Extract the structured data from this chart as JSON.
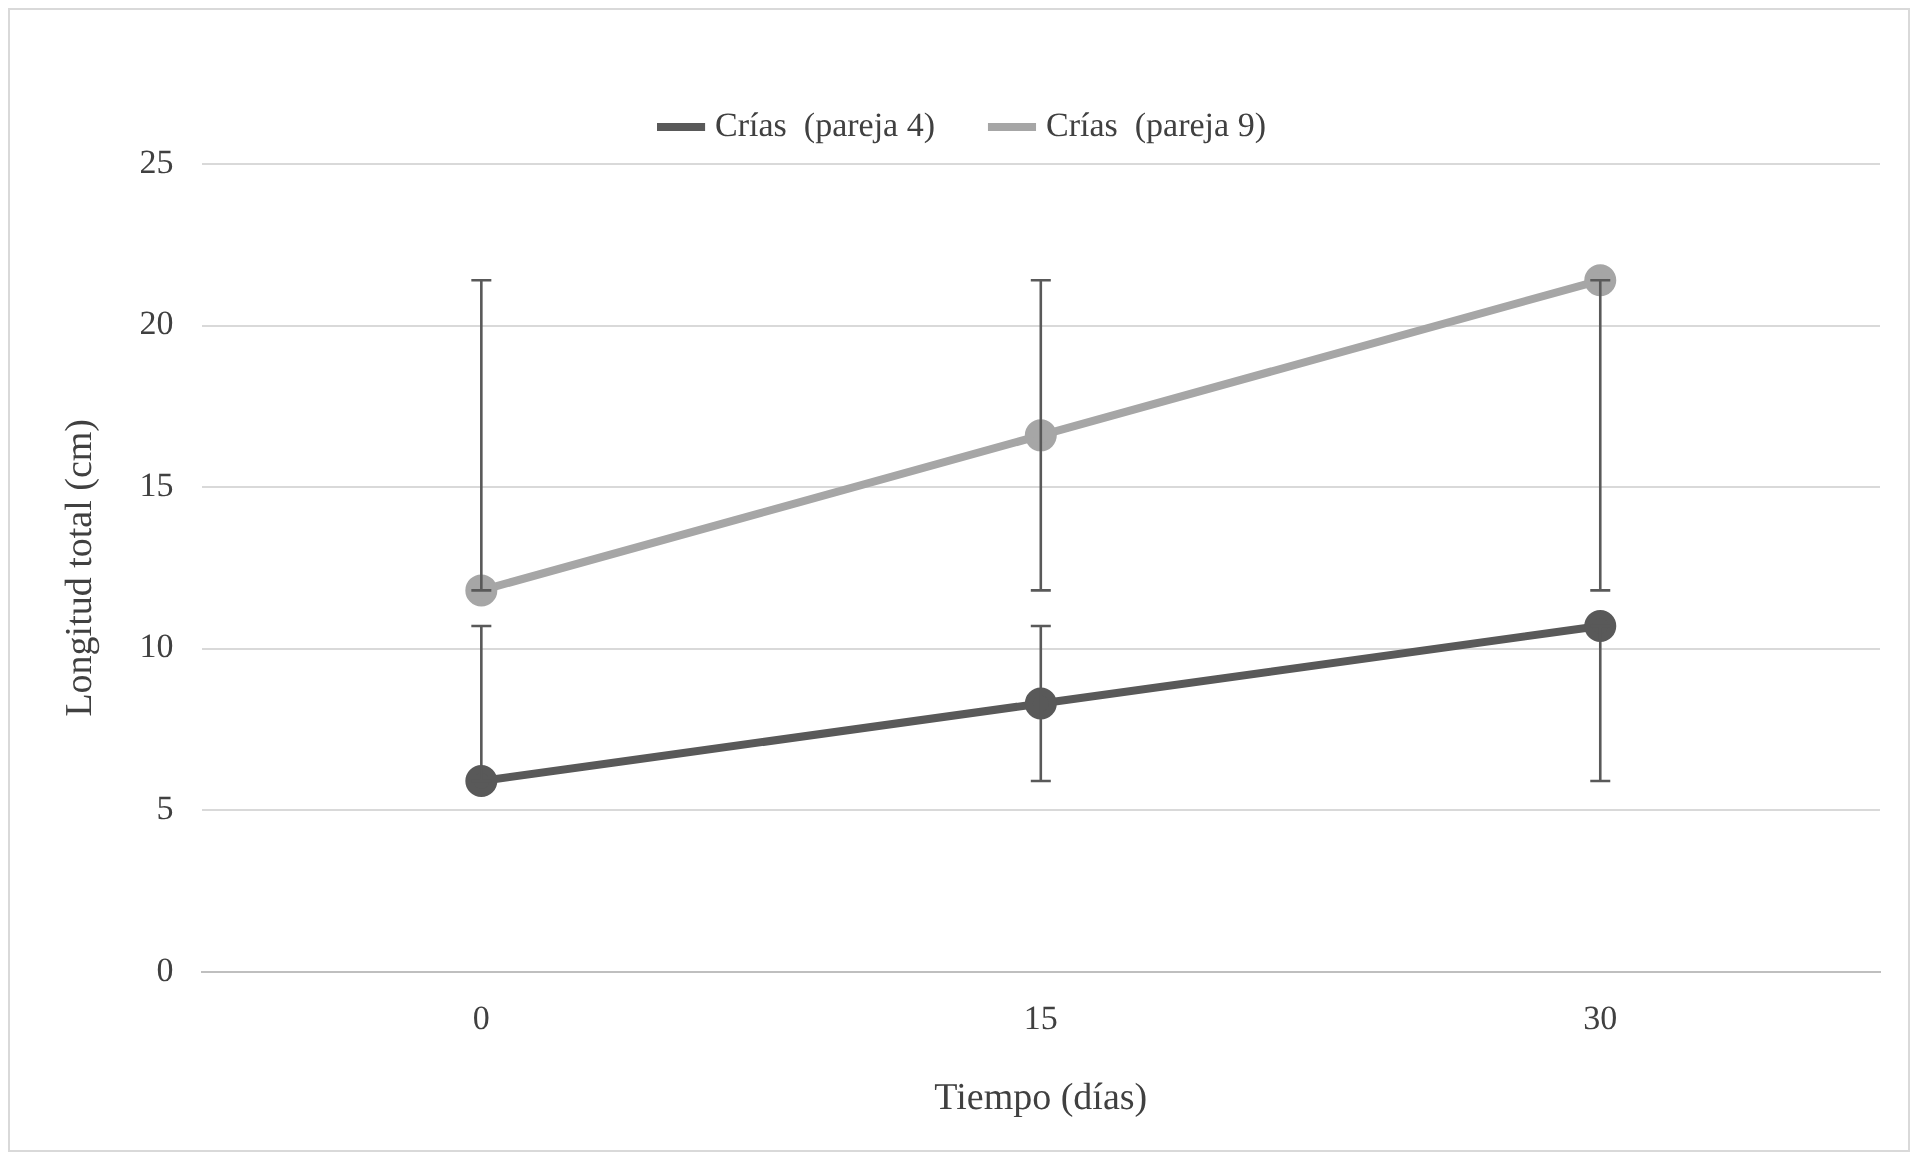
{
  "chart_data": {
    "type": "line",
    "xlabel": "Tiempo (días)",
    "ylabel": "Longitud total (cm)",
    "categories": [
      "0",
      "15",
      "30"
    ],
    "series": [
      {
        "name": "Crías  (pareja 4)",
        "color": "#595959",
        "values": [
          5.9,
          8.3,
          10.7
        ],
        "errors": [
          [
            5.9,
            10.7
          ],
          [
            5.9,
            10.7
          ],
          [
            5.9,
            10.7
          ]
        ]
      },
      {
        "name": "Crías  (pareja 9)",
        "color": "#a6a6a6",
        "values": [
          11.8,
          16.6,
          21.4
        ],
        "errors": [
          [
            11.8,
            21.4
          ],
          [
            11.8,
            21.4
          ],
          [
            11.8,
            21.4
          ]
        ]
      }
    ],
    "ylim": [
      0,
      25
    ],
    "yticks": [
      0,
      5,
      10,
      15,
      20,
      25
    ],
    "grid": "y",
    "legend": "top",
    "marker": "circle",
    "line_style": "solid"
  }
}
